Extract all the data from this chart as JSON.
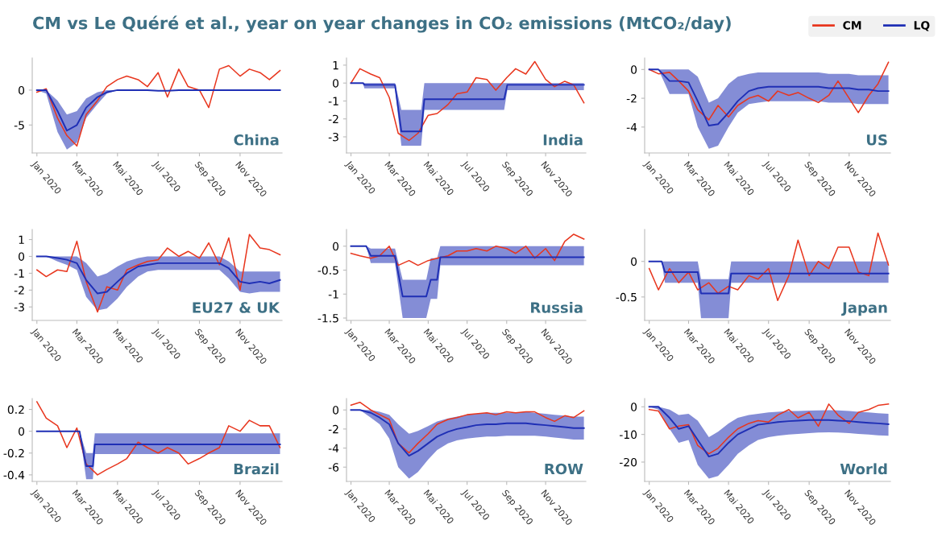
{
  "chart_data": [
    {
      "type": "line",
      "title": "CM vs Le Quéré et al., year on year changes in CO₂ emissions (MtCO₂/day)",
      "legend": "top right",
      "annotations": [
        "China"
      ],
      "x": [
        "2020-01-01",
        "2020-01-15",
        "2020-02-01",
        "2020-02-15",
        "2020-03-01",
        "2020-03-15",
        "2020-04-01",
        "2020-04-15",
        "2020-05-01",
        "2020-05-15",
        "2020-06-01",
        "2020-06-15",
        "2020-07-01",
        "2020-07-15",
        "2020-08-01",
        "2020-08-15",
        "2020-09-01",
        "2020-09-15",
        "2020-10-01",
        "2020-10-15",
        "2020-11-01",
        "2020-11-15",
        "2020-12-01",
        "2020-12-15",
        "2020-12-31"
      ],
      "xlim": [
        "2019-12-25",
        "2021-01-03"
      ],
      "xticks": [
        {
          "value": "2020-01-01",
          "label": "Jan 2020"
        },
        {
          "value": "2020-03-01",
          "label": "Mar 2020"
        },
        {
          "value": "2020-05-01",
          "label": "Mai 2020"
        },
        {
          "value": "2020-07-01",
          "label": "Jul 2020"
        },
        {
          "value": "2020-09-01",
          "label": "Sep 2020"
        },
        {
          "value": "2020-11-01",
          "label": "Nov 2020"
        }
      ],
      "ylim": [
        -9,
        4.6
      ],
      "yticks": [
        0,
        -5
      ],
      "series": [
        {
          "name": "CM",
          "color": "#e8361e",
          "values": [
            -0.3,
            0.2,
            -4,
            -6.5,
            -8,
            -3.5,
            -1.5,
            0.5,
            1.5,
            2,
            1.5,
            0.5,
            2.5,
            -1,
            3,
            0.5,
            0,
            -2.5,
            3,
            3.5,
            2,
            3,
            2.5,
            1.5,
            2.8
          ]
        },
        {
          "name": "LQ",
          "color": "#1f2fb5",
          "values": [
            0,
            0,
            -3,
            -5.8,
            -5,
            -2.5,
            -1,
            -0.3,
            0,
            0,
            0,
            0,
            -0.1,
            -0.1,
            0,
            0,
            0,
            0,
            0,
            0,
            0,
            0,
            0,
            0,
            0
          ],
          "lower": [
            0,
            -0.5,
            -6,
            -8.5,
            -7.5,
            -4,
            -2,
            -0.5,
            0,
            0,
            0,
            0,
            -0.1,
            -0.1,
            0,
            0,
            0,
            0,
            0,
            0,
            0,
            0,
            0,
            0,
            0
          ],
          "upper": [
            0,
            0,
            -1.5,
            -3.5,
            -3,
            -1.2,
            -0.3,
            0,
            0,
            0,
            0,
            0,
            -0.1,
            -0.1,
            0,
            0,
            0,
            0,
            0,
            0,
            0,
            0,
            0,
            0,
            0
          ]
        }
      ]
    },
    {
      "type": "line",
      "annotations": [
        "India"
      ],
      "x": [
        "2020-01-01",
        "2020-01-15",
        "2020-02-01",
        "2020-02-15",
        "2020-03-01",
        "2020-03-15",
        "2020-04-01",
        "2020-04-15",
        "2020-05-01",
        "2020-05-15",
        "2020-06-01",
        "2020-06-15",
        "2020-07-01",
        "2020-07-15",
        "2020-08-01",
        "2020-08-15",
        "2020-09-01",
        "2020-09-15",
        "2020-10-01",
        "2020-10-15",
        "2020-11-01",
        "2020-11-15",
        "2020-12-01",
        "2020-12-15",
        "2020-12-31"
      ],
      "xlim": [
        "2019-12-25",
        "2021-01-03"
      ],
      "xticks": [
        {
          "value": "2020-01-01",
          "label": "Jan 2020"
        },
        {
          "value": "2020-03-01",
          "label": "Mar 2020"
        },
        {
          "value": "2020-05-01",
          "label": "Mai 2020"
        },
        {
          "value": "2020-07-01",
          "label": "Jul 2020"
        },
        {
          "value": "2020-09-01",
          "label": "Sep 2020"
        },
        {
          "value": "2020-11-01",
          "label": "Nov 2020"
        }
      ],
      "ylim": [
        -3.9,
        1.4
      ],
      "yticks": [
        1,
        0,
        -1,
        -2,
        -3
      ],
      "series": [
        {
          "color": "#e8361e",
          "values": [
            0,
            0.8,
            0.5,
            0.3,
            -0.8,
            -2.8,
            -3.2,
            -2.8,
            -1.8,
            -1.7,
            -1.2,
            -0.6,
            -0.5,
            0.3,
            0.2,
            -0.4,
            0.3,
            0.8,
            0.5,
            1.2,
            0.2,
            -0.2,
            0.1,
            -0.1,
            -1.1
          ]
        },
        {
          "color": "#1f2fb5",
          "x": [
            "2020-01-01",
            "2020-01-20",
            "2020-01-22",
            "2020-03-10",
            "2020-03-20",
            "2020-04-20",
            "2020-04-25",
            "2020-08-28",
            "2020-09-02",
            "2020-12-31"
          ],
          "values": [
            0,
            0,
            -0.1,
            -0.1,
            -2.7,
            -2.7,
            -0.9,
            -0.9,
            -0.1,
            -0.1
          ],
          "lower": [
            0,
            0,
            -0.3,
            -0.3,
            -3.5,
            -3.5,
            -1.5,
            -1.5,
            -0.4,
            -0.4
          ],
          "upper": [
            0,
            0,
            0,
            0,
            -1.5,
            -1.5,
            0,
            0,
            0,
            0
          ]
        }
      ]
    },
    {
      "type": "line",
      "annotations": [
        "US"
      ],
      "x": [
        "2020-01-01",
        "2020-01-15",
        "2020-02-01",
        "2020-02-15",
        "2020-03-01",
        "2020-03-15",
        "2020-04-01",
        "2020-04-15",
        "2020-05-01",
        "2020-05-15",
        "2020-06-01",
        "2020-06-15",
        "2020-07-01",
        "2020-07-15",
        "2020-08-01",
        "2020-08-15",
        "2020-09-01",
        "2020-09-15",
        "2020-10-01",
        "2020-10-15",
        "2020-11-01",
        "2020-11-15",
        "2020-12-01",
        "2020-12-15",
        "2020-12-31"
      ],
      "xlim": [
        "2019-12-25",
        "2021-01-03"
      ],
      "xticks": [
        {
          "value": "2020-01-01",
          "label": "Jan 2020"
        },
        {
          "value": "2020-03-01",
          "label": "Mar 2020"
        },
        {
          "value": "2020-05-01",
          "label": "Mai 2020"
        },
        {
          "value": "2020-07-01",
          "label": "Jul 2020"
        },
        {
          "value": "2020-09-01",
          "label": "Sep 2020"
        },
        {
          "value": "2020-11-01",
          "label": "Nov 2020"
        }
      ],
      "ylim": [
        -5.8,
        0.8
      ],
      "yticks": [
        0,
        -2,
        -4
      ],
      "series": [
        {
          "color": "#e8361e",
          "values": [
            0,
            -0.3,
            -0.2,
            -0.8,
            -1.5,
            -2.8,
            -3.5,
            -2.5,
            -3.3,
            -2.5,
            -2,
            -1.8,
            -2.2,
            -1.5,
            -1.8,
            -1.6,
            -2,
            -2.3,
            -1.8,
            -0.8,
            -2,
            -3,
            -1.8,
            -1,
            0.5
          ]
        },
        {
          "color": "#1f2fb5",
          "values": [
            0,
            0,
            -0.8,
            -0.8,
            -0.9,
            -2.2,
            -3.9,
            -3.8,
            -3,
            -2.2,
            -1.5,
            -1.3,
            -1.2,
            -1.2,
            -1.2,
            -1.2,
            -1.2,
            -1.2,
            -1.3,
            -1.3,
            -1.3,
            -1.4,
            -1.4,
            -1.5,
            -1.5
          ],
          "lower": [
            0,
            0,
            -1.7,
            -1.7,
            -1.7,
            -4,
            -5.5,
            -5.3,
            -4,
            -3,
            -2.4,
            -2.3,
            -2.2,
            -2.2,
            -2.2,
            -2.2,
            -2.2,
            -2.2,
            -2.3,
            -2.3,
            -2.3,
            -2.4,
            -2.4,
            -2.4,
            -2.4
          ],
          "upper": [
            0,
            0,
            0,
            0,
            0,
            -0.5,
            -2.3,
            -2,
            -1,
            -0.5,
            -0.3,
            -0.2,
            -0.2,
            -0.2,
            -0.2,
            -0.2,
            -0.2,
            -0.2,
            -0.3,
            -0.3,
            -0.3,
            -0.4,
            -0.4,
            -0.4,
            -0.4
          ]
        }
      ]
    },
    {
      "type": "line",
      "annotations": [
        "EU27 & UK"
      ],
      "x": [
        "2020-01-01",
        "2020-01-15",
        "2020-02-01",
        "2020-02-15",
        "2020-03-01",
        "2020-03-15",
        "2020-04-01",
        "2020-04-15",
        "2020-05-01",
        "2020-05-15",
        "2020-06-01",
        "2020-06-15",
        "2020-07-01",
        "2020-07-15",
        "2020-08-01",
        "2020-08-15",
        "2020-09-01",
        "2020-09-15",
        "2020-10-01",
        "2020-10-15",
        "2020-11-01",
        "2020-11-15",
        "2020-12-01",
        "2020-12-15",
        "2020-12-31"
      ],
      "xlim": [
        "2019-12-25",
        "2021-01-03"
      ],
      "xticks": [
        {
          "value": "2020-01-01",
          "label": "Jan 2020"
        },
        {
          "value": "2020-03-01",
          "label": "Mar 2020"
        },
        {
          "value": "2020-05-01",
          "label": "Mai 2020"
        },
        {
          "value": "2020-07-01",
          "label": "Jul 2020"
        },
        {
          "value": "2020-09-01",
          "label": "Sep 2020"
        },
        {
          "value": "2020-11-01",
          "label": "Nov 2020"
        }
      ],
      "ylim": [
        -3.8,
        1.6
      ],
      "yticks": [
        1,
        0,
        -1,
        -2,
        -3
      ],
      "series": [
        {
          "color": "#e8361e",
          "values": [
            -0.8,
            -1.2,
            -0.8,
            -0.9,
            0.9,
            -1.5,
            -3.3,
            -1.8,
            -2,
            -0.8,
            -0.5,
            -0.3,
            -0.2,
            0.5,
            0,
            0.3,
            -0.1,
            0.8,
            -0.5,
            1.1,
            -2,
            1.3,
            0.5,
            0.4,
            0.1
          ]
        },
        {
          "color": "#1f2fb5",
          "values": [
            0,
            0,
            -0.1,
            -0.2,
            -0.4,
            -1.4,
            -2.2,
            -2.1,
            -1.5,
            -1,
            -0.6,
            -0.5,
            -0.4,
            -0.4,
            -0.4,
            -0.4,
            -0.4,
            -0.4,
            -0.4,
            -0.7,
            -1.5,
            -1.6,
            -1.5,
            -1.6,
            -1.4
          ],
          "lower": [
            0,
            0,
            -0.3,
            -0.5,
            -0.8,
            -2.4,
            -3.2,
            -3.1,
            -2.5,
            -1.8,
            -1.2,
            -0.9,
            -0.8,
            -0.8,
            -0.8,
            -0.8,
            -0.8,
            -0.8,
            -0.8,
            -1.3,
            -2.1,
            -2.2,
            -2.1,
            -2.1,
            -2.1
          ],
          "upper": [
            0,
            0,
            0,
            0,
            0,
            -0.4,
            -1.2,
            -1,
            -0.6,
            -0.3,
            -0.1,
            0,
            0,
            0,
            0,
            0,
            0,
            0,
            0,
            -0.3,
            -0.9,
            -0.9,
            -0.9,
            -0.9,
            -0.9
          ]
        }
      ]
    },
    {
      "type": "line",
      "annotations": [
        "Russia"
      ],
      "x": [
        "2020-01-01",
        "2020-01-15",
        "2020-02-01",
        "2020-02-15",
        "2020-03-01",
        "2020-03-15",
        "2020-04-01",
        "2020-04-15",
        "2020-05-01",
        "2020-05-15",
        "2020-06-01",
        "2020-06-15",
        "2020-07-01",
        "2020-07-15",
        "2020-08-01",
        "2020-08-15",
        "2020-09-01",
        "2020-09-15",
        "2020-10-01",
        "2020-10-15",
        "2020-11-01",
        "2020-11-15",
        "2020-12-01",
        "2020-12-15",
        "2020-12-31"
      ],
      "xlim": [
        "2019-12-25",
        "2021-01-03"
      ],
      "xticks": [
        {
          "value": "2020-01-01",
          "label": "Jan 2020"
        },
        {
          "value": "2020-03-01",
          "label": "Mar 2020"
        },
        {
          "value": "2020-05-01",
          "label": "Mai 2020"
        },
        {
          "value": "2020-07-01",
          "label": "Jul 2020"
        },
        {
          "value": "2020-09-01",
          "label": "Sep 2020"
        },
        {
          "value": "2020-11-01",
          "label": "Nov 2020"
        }
      ],
      "ylim": [
        -1.55,
        0.35
      ],
      "yticks": [
        0,
        -0.5,
        -1,
        -1.5
      ],
      "series": [
        {
          "color": "#e8361e",
          "values": [
            -0.15,
            -0.2,
            -0.25,
            -0.2,
            0,
            -0.4,
            -0.3,
            -0.4,
            -0.3,
            -0.25,
            -0.2,
            -0.1,
            -0.1,
            -0.05,
            -0.1,
            0,
            -0.05,
            -0.15,
            0,
            -0.25,
            -0.05,
            -0.3,
            0.1,
            0.25,
            0.15
          ]
        },
        {
          "color": "#1f2fb5",
          "x": [
            "2020-01-01",
            "2020-01-25",
            "2020-02-01",
            "2020-03-10",
            "2020-03-22",
            "2020-04-28",
            "2020-05-05",
            "2020-05-15",
            "2020-05-20",
            "2020-12-31"
          ],
          "values": [
            0,
            0,
            -0.2,
            -0.2,
            -1.05,
            -1.05,
            -0.7,
            -0.7,
            -0.23,
            -0.23
          ],
          "lower": [
            0,
            0,
            -0.35,
            -0.35,
            -1.5,
            -1.5,
            -1.1,
            -1.1,
            -0.4,
            -0.4
          ],
          "upper": [
            0,
            0,
            -0.05,
            -0.05,
            -0.7,
            -0.7,
            -0.25,
            -0.25,
            0,
            0
          ]
        }
      ]
    },
    {
      "type": "line",
      "annotations": [
        "Japan"
      ],
      "x": [
        "2020-01-01",
        "2020-01-15",
        "2020-02-01",
        "2020-02-15",
        "2020-03-01",
        "2020-03-15",
        "2020-04-01",
        "2020-04-15",
        "2020-05-01",
        "2020-05-15",
        "2020-06-01",
        "2020-06-15",
        "2020-07-01",
        "2020-07-15",
        "2020-08-01",
        "2020-08-15",
        "2020-09-01",
        "2020-09-15",
        "2020-10-01",
        "2020-10-15",
        "2020-11-01",
        "2020-11-15",
        "2020-12-01",
        "2020-12-15",
        "2020-12-31"
      ],
      "xlim": [
        "2019-12-25",
        "2021-01-03"
      ],
      "xticks": [
        {
          "value": "2020-01-01",
          "label": "Jan 2020"
        },
        {
          "value": "2020-03-01",
          "label": "Mar 2020"
        },
        {
          "value": "2020-05-01",
          "label": "Mai 2020"
        },
        {
          "value": "2020-07-01",
          "label": "Jul 2020"
        },
        {
          "value": "2020-09-01",
          "label": "Sep 2020"
        },
        {
          "value": "2020-11-01",
          "label": "Nov 2020"
        }
      ],
      "ylim": [
        -0.83,
        0.45
      ],
      "yticks": [
        0,
        -0.5
      ],
      "series": [
        {
          "color": "#e8361e",
          "values": [
            -0.1,
            -0.4,
            -0.1,
            -0.3,
            -0.15,
            -0.4,
            -0.3,
            -0.45,
            -0.35,
            -0.4,
            -0.2,
            -0.25,
            -0.1,
            -0.55,
            -0.2,
            0.3,
            -0.2,
            0,
            -0.1,
            0.2,
            0.2,
            -0.15,
            -0.2,
            0.4,
            -0.05
          ]
        },
        {
          "color": "#1f2fb5",
          "x": [
            "2020-01-01",
            "2020-01-20",
            "2020-01-25",
            "2020-03-15",
            "2020-03-20",
            "2020-05-01",
            "2020-05-05",
            "2020-12-31"
          ],
          "values": [
            0,
            0,
            -0.15,
            -0.15,
            -0.45,
            -0.45,
            -0.17,
            -0.17
          ],
          "lower": [
            0,
            0,
            -0.3,
            -0.3,
            -0.8,
            -0.8,
            -0.3,
            -0.3
          ],
          "upper": [
            0,
            0,
            0,
            0,
            -0.25,
            -0.25,
            0,
            0
          ]
        }
      ]
    },
    {
      "type": "line",
      "annotations": [
        "Brazil"
      ],
      "x": [
        "2020-01-01",
        "2020-01-15",
        "2020-02-01",
        "2020-02-15",
        "2020-03-01",
        "2020-03-15",
        "2020-04-01",
        "2020-04-15",
        "2020-05-01",
        "2020-05-15",
        "2020-06-01",
        "2020-06-15",
        "2020-07-01",
        "2020-07-15",
        "2020-08-01",
        "2020-08-15",
        "2020-09-01",
        "2020-09-15",
        "2020-10-01",
        "2020-10-15",
        "2020-11-01",
        "2020-11-15",
        "2020-12-01",
        "2020-12-15",
        "2020-12-31"
      ],
      "xlim": [
        "2019-12-25",
        "2021-01-03"
      ],
      "xticks": [
        {
          "value": "2020-01-01",
          "label": "Jan 2020"
        },
        {
          "value": "2020-03-01",
          "label": "Mar 2020"
        },
        {
          "value": "2020-05-01",
          "label": "Mai 2020"
        },
        {
          "value": "2020-07-01",
          "label": "Jul 2020"
        },
        {
          "value": "2020-09-01",
          "label": "Sep 2020"
        },
        {
          "value": "2020-11-01",
          "label": "Nov 2020"
        }
      ],
      "ylim": [
        -0.46,
        0.3
      ],
      "yticks": [
        0.2,
        0,
        -0.2,
        -0.4
      ],
      "series": [
        {
          "color": "#e8361e",
          "values": [
            0.27,
            0.12,
            0.05,
            -0.15,
            0.03,
            -0.3,
            -0.4,
            -0.35,
            -0.3,
            -0.25,
            -0.1,
            -0.15,
            -0.2,
            -0.15,
            -0.2,
            -0.3,
            -0.25,
            -0.2,
            -0.15,
            0.05,
            0,
            0.1,
            0.05,
            0.05,
            -0.15
          ]
        },
        {
          "color": "#1f2fb5",
          "x": [
            "2020-01-01",
            "2020-03-05",
            "2020-03-15",
            "2020-03-25",
            "2020-03-28",
            "2020-12-31"
          ],
          "values": [
            0,
            0,
            -0.32,
            -0.32,
            -0.12,
            -0.12
          ],
          "lower": [
            0,
            0,
            -0.44,
            -0.44,
            -0.21,
            -0.21
          ],
          "upper": [
            0,
            0,
            -0.2,
            -0.2,
            -0.02,
            -0.02
          ]
        }
      ]
    },
    {
      "type": "line",
      "annotations": [
        "ROW"
      ],
      "x": [
        "2020-01-01",
        "2020-01-15",
        "2020-02-01",
        "2020-02-15",
        "2020-03-01",
        "2020-03-15",
        "2020-04-01",
        "2020-04-15",
        "2020-05-01",
        "2020-05-15",
        "2020-06-01",
        "2020-06-15",
        "2020-07-01",
        "2020-07-15",
        "2020-08-01",
        "2020-08-15",
        "2020-09-01",
        "2020-09-15",
        "2020-10-01",
        "2020-10-15",
        "2020-11-01",
        "2020-11-15",
        "2020-12-01",
        "2020-12-15",
        "2020-12-31"
      ],
      "xlim": [
        "2019-12-25",
        "2021-01-03"
      ],
      "xticks": [
        {
          "value": "2020-01-01",
          "label": "Jan 2020"
        },
        {
          "value": "2020-03-01",
          "label": "Mar 2020"
        },
        {
          "value": "2020-05-01",
          "label": "Mai 2020"
        },
        {
          "value": "2020-07-01",
          "label": "Jul 2020"
        },
        {
          "value": "2020-09-01",
          "label": "Sep 2020"
        },
        {
          "value": "2020-11-01",
          "label": "Nov 2020"
        }
      ],
      "ylim": [
        -7.5,
        1.2
      ],
      "yticks": [
        0,
        -2,
        -4,
        -6
      ],
      "series": [
        {
          "color": "#e8361e",
          "values": [
            0.5,
            0.8,
            0,
            -0.5,
            -1,
            -3.5,
            -4.5,
            -3.5,
            -2.5,
            -1.5,
            -1,
            -0.8,
            -0.5,
            -0.4,
            -0.3,
            -0.5,
            -0.2,
            -0.3,
            -0.2,
            -0.2,
            -0.8,
            -1.2,
            -0.6,
            -0.8,
            -0.1
          ]
        },
        {
          "color": "#1f2fb5",
          "values": [
            0,
            0,
            -0.3,
            -0.8,
            -1.5,
            -3.5,
            -4.8,
            -4.3,
            -3.5,
            -2.8,
            -2.3,
            -2,
            -1.8,
            -1.6,
            -1.5,
            -1.5,
            -1.4,
            -1.4,
            -1.4,
            -1.5,
            -1.6,
            -1.7,
            -1.8,
            -1.9,
            -1.9
          ],
          "lower": [
            0,
            0,
            -0.8,
            -1.5,
            -3,
            -6,
            -7.2,
            -6.5,
            -5.2,
            -4.2,
            -3.5,
            -3.2,
            -3,
            -2.9,
            -2.8,
            -2.8,
            -2.7,
            -2.7,
            -2.7,
            -2.7,
            -2.8,
            -2.9,
            -3,
            -3.1,
            -3.1
          ],
          "upper": [
            0,
            0,
            0,
            -0.2,
            -0.5,
            -1.5,
            -2.5,
            -2.2,
            -1.7,
            -1.2,
            -0.9,
            -0.7,
            -0.5,
            -0.4,
            -0.3,
            -0.3,
            -0.3,
            -0.3,
            -0.2,
            -0.3,
            -0.4,
            -0.5,
            -0.6,
            -0.7,
            -0.7
          ]
        }
      ]
    },
    {
      "type": "line",
      "annotations": [
        "World"
      ],
      "x": [
        "2020-01-01",
        "2020-01-15",
        "2020-02-01",
        "2020-02-15",
        "2020-03-01",
        "2020-03-15",
        "2020-04-01",
        "2020-04-15",
        "2020-05-01",
        "2020-05-15",
        "2020-06-01",
        "2020-06-15",
        "2020-07-01",
        "2020-07-15",
        "2020-08-01",
        "2020-08-15",
        "2020-09-01",
        "2020-09-15",
        "2020-10-01",
        "2020-10-15",
        "2020-11-01",
        "2020-11-15",
        "2020-12-01",
        "2020-12-15",
        "2020-12-31"
      ],
      "xlim": [
        "2019-12-25",
        "2021-01-03"
      ],
      "xticks": [
        {
          "value": "2020-01-01",
          "label": "Jan 2020"
        },
        {
          "value": "2020-03-01",
          "label": "Mar 2020"
        },
        {
          "value": "2020-05-01",
          "label": "Mai 2020"
        },
        {
          "value": "2020-07-01",
          "label": "Jul 2020"
        },
        {
          "value": "2020-09-01",
          "label": "Sep 2020"
        },
        {
          "value": "2020-11-01",
          "label": "Nov 2020"
        }
      ],
      "ylim": [
        -27,
        3
      ],
      "yticks": [
        0,
        -10,
        -20
      ],
      "series": [
        {
          "color": "#e8361e",
          "values": [
            -1,
            -1.5,
            -8,
            -7,
            -6.5,
            -14,
            -17,
            -15,
            -11,
            -8,
            -6,
            -5,
            -5.5,
            -3,
            -1,
            -4,
            -2,
            -7,
            1,
            -3,
            -6,
            -2,
            -1,
            0.5,
            1
          ]
        },
        {
          "color": "#1f2fb5",
          "values": [
            0,
            0,
            -4,
            -8,
            -7,
            -12,
            -18,
            -17,
            -13,
            -10,
            -8,
            -6.5,
            -6,
            -5.5,
            -5.2,
            -5,
            -4.8,
            -4.8,
            -4.8,
            -5,
            -5.2,
            -5.5,
            -5.8,
            -6,
            -6.3
          ],
          "lower": [
            0,
            -1,
            -8,
            -13,
            -12,
            -21,
            -26,
            -25,
            -21,
            -17,
            -14,
            -12,
            -11,
            -10.5,
            -10,
            -9.8,
            -9.5,
            -9.3,
            -9.2,
            -9.3,
            -9.5,
            -9.8,
            -10,
            -10.3,
            -10.5
          ],
          "upper": [
            0,
            0,
            -1,
            -3,
            -2.5,
            -5,
            -11,
            -9,
            -6,
            -4,
            -3,
            -2.5,
            -2,
            -1.8,
            -1.5,
            -1.5,
            -1.4,
            -1.3,
            -1.2,
            -1.3,
            -1.5,
            -1.8,
            -2,
            -2.3,
            -2.5
          ]
        }
      ]
    }
  ]
}
